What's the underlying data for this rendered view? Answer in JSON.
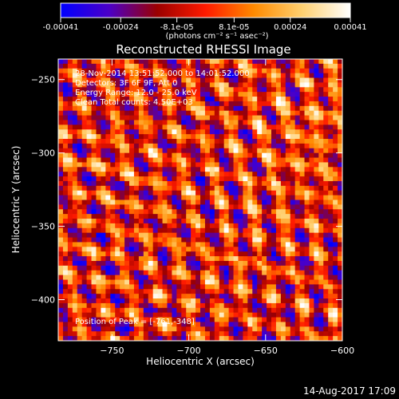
{
  "footer": {
    "timestamp": "14-Aug-2017 17:09"
  },
  "colorbar": {
    "tick_labels": [
      "-0.00041",
      "-0.00024",
      "-8.1e-05",
      "8.1e-05",
      "0.00024",
      "0.00041"
    ],
    "tick_values": [
      -0.00041,
      -0.00024,
      -8.1e-05,
      8.1e-05,
      0.00024,
      0.00041
    ],
    "range": [
      -0.00041,
      0.00041
    ],
    "unit_label": "(photons cm⁻² s⁻¹ asec⁻²)",
    "colors": [
      "#0000ff",
      "#4b00c8",
      "#9b0000",
      "#ff1a00",
      "#ff8a00",
      "#ffd070",
      "#ffffff"
    ]
  },
  "chart_data": {
    "type": "heatmap",
    "title": "Reconstructed RHESSI Image",
    "xlabel": "Heliocentric X (arcsec)",
    "ylabel": "Heliocentric Y (arcsec)",
    "xlim": [
      -785,
      -600
    ],
    "ylim": [
      -428,
      -236
    ],
    "xticks": [
      -750,
      -700,
      -650,
      -600
    ],
    "yticks": [
      -250,
      -300,
      -350,
      -400
    ],
    "annotations": [
      "28-Nov-2014 13:51:52.000 to 14:01:52.000",
      "Detectors: 3F 6F 9F, Att 0",
      "Energy Range: 12.0 - 25.0 keV",
      "Clean    Total counts: 4.50E+03"
    ],
    "peak_annotation": "Position of Peak = [-761,-348]",
    "peak": [
      -761,
      -348
    ],
    "value_range": [
      -0.00041,
      0.00041
    ]
  }
}
